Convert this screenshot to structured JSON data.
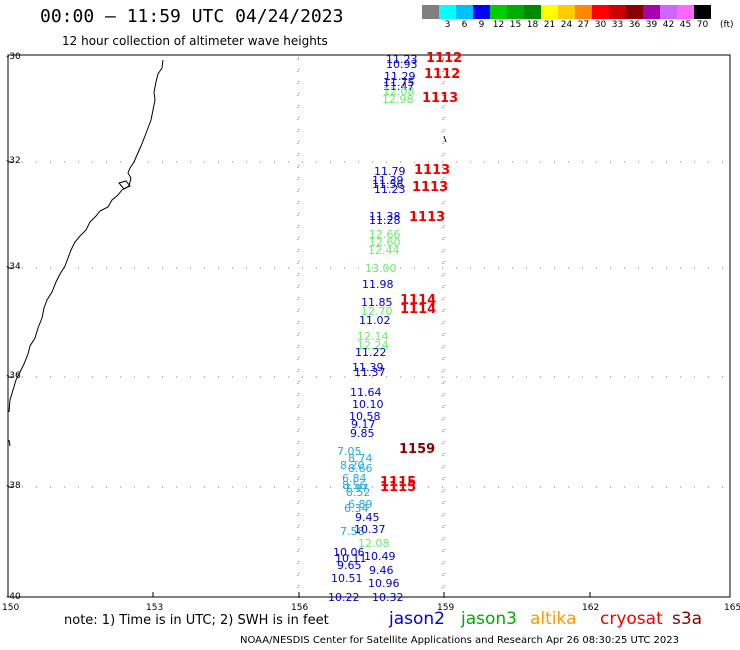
{
  "title": "00:00 – 11:59 UTC 04/24/2023",
  "subtitle": "12 hour collection of altimeter wave heights",
  "colorbar": {
    "colors": [
      "#808080",
      "#00ffff",
      "#00bfff",
      "#0000ff",
      "#00cc00",
      "#00aa00",
      "#008800",
      "#ffff00",
      "#ffcc00",
      "#ff8800",
      "#ff0000",
      "#cc0000",
      "#880000",
      "#aa00aa",
      "#cc66ff",
      "#ff66ff",
      "#000000"
    ],
    "labels": [
      "3",
      "6",
      "9",
      "12",
      "15",
      "18",
      "21",
      "24",
      "27",
      "30",
      "33",
      "36",
      "39",
      "42",
      "45",
      "70"
    ],
    "unit": "(ft)"
  },
  "axes": {
    "y_labels": [
      "-30",
      "-32",
      "-34",
      "-36",
      "-38",
      "-40"
    ],
    "x_labels": [
      "150",
      "153",
      "156",
      "159",
      "162",
      "165"
    ]
  },
  "observations": [
    {
      "text": "11.23",
      "color": "#0000cc"
    },
    {
      "text": "10.93",
      "color": "#0000cc"
    },
    {
      "text": "11.29",
      "color": "#0000cc"
    },
    {
      "text": "11.75",
      "color": "#0000cc"
    },
    {
      "text": "11.47",
      "color": "#0000cc"
    },
    {
      "text": "12.08",
      "color": "#66ee66"
    },
    {
      "text": "12.98",
      "color": "#66ee66"
    },
    {
      "text": "11.79",
      "color": "#0000cc"
    },
    {
      "text": "11.39",
      "color": "#0000cc"
    },
    {
      "text": "11.56",
      "color": "#0000cc"
    },
    {
      "text": "11.23",
      "color": "#0000cc"
    },
    {
      "text": "11.38",
      "color": "#0000cc"
    },
    {
      "text": "11.28",
      "color": "#0000cc"
    },
    {
      "text": "12.66",
      "color": "#66ee66"
    },
    {
      "text": "12.60",
      "color": "#66ee66"
    },
    {
      "text": "12.44",
      "color": "#66ee66"
    },
    {
      "text": "13.00",
      "color": "#66ee66"
    },
    {
      "text": "11.98",
      "color": "#0000cc"
    },
    {
      "text": "11.85",
      "color": "#0000cc"
    },
    {
      "text": "12.70",
      "color": "#66ee66"
    },
    {
      "text": "11.02",
      "color": "#0000cc"
    },
    {
      "text": "12.14",
      "color": "#66ee66"
    },
    {
      "text": "12.24",
      "color": "#66ee66"
    },
    {
      "text": "11.22",
      "color": "#0000cc"
    },
    {
      "text": "11.39",
      "color": "#0000cc"
    },
    {
      "text": "11.37",
      "color": "#0000cc"
    },
    {
      "text": "11.64",
      "color": "#0000cc"
    },
    {
      "text": "10.10",
      "color": "#0000cc"
    },
    {
      "text": "10.58",
      "color": "#0000cc"
    },
    {
      "text": "9.17",
      "color": "#0000cc"
    },
    {
      "text": "9.85",
      "color": "#0000cc"
    },
    {
      "text": "7.05",
      "color": "#22aadd"
    },
    {
      "text": "8.74",
      "color": "#22aadd"
    },
    {
      "text": "8.20",
      "color": "#22aadd"
    },
    {
      "text": "8.66",
      "color": "#22aadd"
    },
    {
      "text": "6.84",
      "color": "#22aadd"
    },
    {
      "text": "8.56",
      "color": "#22aadd"
    },
    {
      "text": "7.97",
      "color": "#22aadd"
    },
    {
      "text": "8.52",
      "color": "#22aadd"
    },
    {
      "text": "6.89",
      "color": "#22aadd"
    },
    {
      "text": "6.34",
      "color": "#22aadd"
    },
    {
      "text": "9.45",
      "color": "#0000cc"
    },
    {
      "text": "7.58",
      "color": "#22aadd"
    },
    {
      "text": "10.37",
      "color": "#0000cc"
    },
    {
      "text": "12.08",
      "color": "#66ee66"
    },
    {
      "text": "10.06",
      "color": "#0000cc"
    },
    {
      "text": "10.11",
      "color": "#0000cc"
    },
    {
      "text": "10.49",
      "color": "#0000cc"
    },
    {
      "text": "9.65",
      "color": "#0000cc"
    },
    {
      "text": "9.46",
      "color": "#0000cc"
    },
    {
      "text": "10.51",
      "color": "#0000cc"
    },
    {
      "text": "10.96",
      "color": "#0000cc"
    },
    {
      "text": "10.22",
      "color": "#0000cc"
    },
    {
      "text": "10.32",
      "color": "#0000cc"
    }
  ],
  "passes": [
    {
      "text": "1112",
      "color": "#ee0000"
    },
    {
      "text": "1112",
      "color": "#ee0000"
    },
    {
      "text": "1113",
      "color": "#ee0000"
    },
    {
      "text": "1113",
      "color": "#ee0000"
    },
    {
      "text": "1113",
      "color": "#ee0000"
    },
    {
      "text": "1113",
      "color": "#ee0000"
    },
    {
      "text": "1114",
      "color": "#ee0000"
    },
    {
      "text": "1114",
      "color": "#ee0000"
    },
    {
      "text": "1159",
      "color": "#880000"
    },
    {
      "text": "1115",
      "color": "#ee0000"
    },
    {
      "text": "1115",
      "color": "#ee0000"
    }
  ],
  "note": "note:  1) Time is in UTC; 2) SWH is in feet",
  "legend": [
    {
      "name": "jason2",
      "color": "#0000dd"
    },
    {
      "name": "jason3",
      "color": "#00aa00"
    },
    {
      "name": "altika",
      "color": "#ff9900"
    },
    {
      "name": "cryosat",
      "color": "#ee0000"
    },
    {
      "name": "s3a",
      "color": "#880000"
    }
  ],
  "credit": "NOAA/NESDIS Center for Satellite Applications and Research   Apr 26 08:30:25 UTC 2023"
}
